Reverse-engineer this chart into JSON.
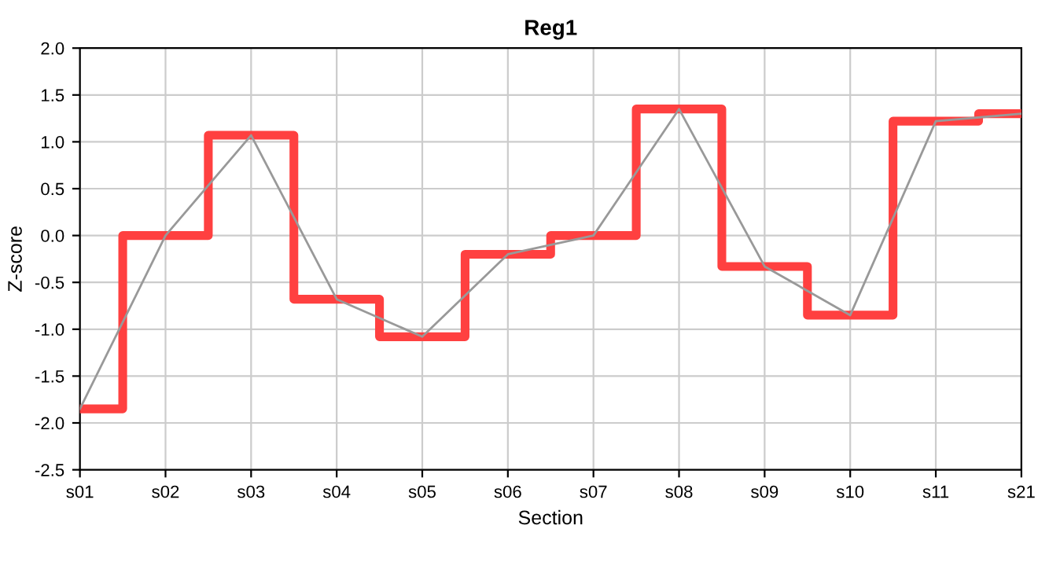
{
  "chart_data": {
    "type": "line",
    "title": "Reg1",
    "xlabel": "Section",
    "ylabel": "Z-score",
    "categories": [
      "s01",
      "s02",
      "s03",
      "s04",
      "s05",
      "s06",
      "s07",
      "s08",
      "s09",
      "s10",
      "s11",
      "s21"
    ],
    "series": [
      {
        "type": "step",
        "color": "#ff4040",
        "values": [
          -1.85,
          0.0,
          1.07,
          -0.68,
          -1.08,
          -0.2,
          0.0,
          1.35,
          -0.33,
          -0.85,
          1.22,
          1.3
        ]
      },
      {
        "color": "#999999",
        "values": [
          -1.85,
          0.0,
          1.07,
          -0.68,
          -1.08,
          -0.2,
          0.0,
          1.35,
          -0.33,
          -0.85,
          1.22,
          1.3
        ]
      }
    ],
    "ylim": [
      -2.5,
      2.0
    ],
    "yticks": [
      {
        "value": -2.5,
        "label": "-2.5"
      },
      {
        "value": -2.0,
        "label": "-2.0"
      },
      {
        "value": -1.5,
        "label": "-1.5"
      },
      {
        "value": -1.0,
        "label": "-1.0"
      },
      {
        "value": -0.5,
        "label": "-0.5"
      },
      {
        "value": 0.0,
        "label": "0.0"
      },
      {
        "value": 0.5,
        "label": "0.5"
      },
      {
        "value": 1.0,
        "label": "1.0"
      },
      {
        "value": 1.5,
        "label": "1.5"
      },
      {
        "value": 2.0,
        "label": "2.0"
      }
    ],
    "grid": true,
    "legend": false
  }
}
